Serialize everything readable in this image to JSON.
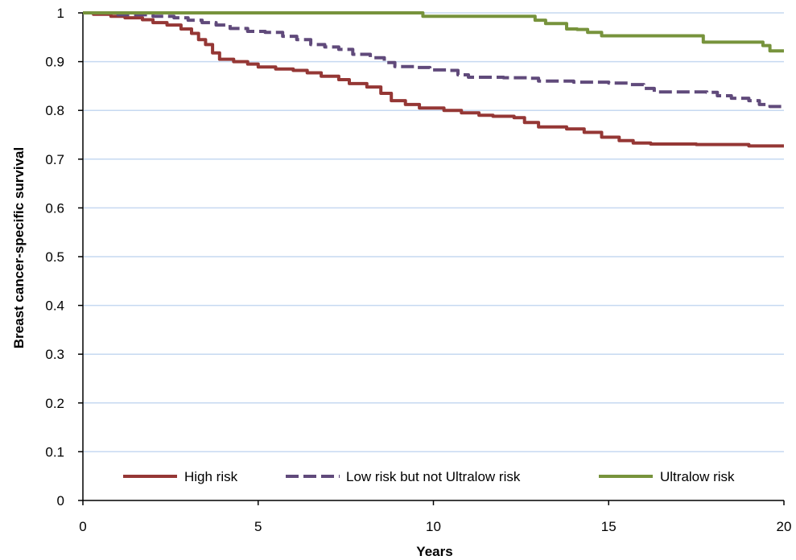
{
  "chart_data": {
    "type": "line",
    "title": "",
    "xlabel": "Years",
    "ylabel": "Breast cancer-specific survival",
    "xlim": [
      0,
      20
    ],
    "ylim": [
      0,
      1
    ],
    "x_ticks": [
      "0",
      "5",
      "10",
      "15",
      "20"
    ],
    "y_ticks": [
      "0",
      "0.1",
      "0.2",
      "0.3",
      "0.4",
      "0.5",
      "0.6",
      "0.7",
      "0.8",
      "0.9",
      "1"
    ],
    "grid": "horizontal",
    "legend_position": "bottom",
    "series": [
      {
        "name": "High risk",
        "color": "#953735",
        "dash": "solid",
        "points": [
          [
            0,
            1.0
          ],
          [
            0.3,
            0.997
          ],
          [
            0.8,
            0.993
          ],
          [
            1.2,
            0.99
          ],
          [
            1.7,
            0.986
          ],
          [
            2.0,
            0.98
          ],
          [
            2.4,
            0.975
          ],
          [
            2.8,
            0.967
          ],
          [
            3.1,
            0.958
          ],
          [
            3.3,
            0.945
          ],
          [
            3.5,
            0.935
          ],
          [
            3.7,
            0.918
          ],
          [
            3.9,
            0.905
          ],
          [
            4.3,
            0.9
          ],
          [
            4.7,
            0.895
          ],
          [
            5.0,
            0.889
          ],
          [
            5.5,
            0.885
          ],
          [
            6.0,
            0.882
          ],
          [
            6.4,
            0.877
          ],
          [
            6.8,
            0.87
          ],
          [
            7.3,
            0.863
          ],
          [
            7.6,
            0.855
          ],
          [
            8.1,
            0.848
          ],
          [
            8.5,
            0.835
          ],
          [
            8.8,
            0.82
          ],
          [
            9.2,
            0.812
          ],
          [
            9.6,
            0.805
          ],
          [
            10.3,
            0.8
          ],
          [
            10.8,
            0.795
          ],
          [
            11.3,
            0.79
          ],
          [
            11.7,
            0.788
          ],
          [
            12.3,
            0.785
          ],
          [
            12.6,
            0.775
          ],
          [
            13.0,
            0.766
          ],
          [
            13.8,
            0.762
          ],
          [
            14.3,
            0.755
          ],
          [
            14.8,
            0.745
          ],
          [
            15.3,
            0.738
          ],
          [
            15.7,
            0.733
          ],
          [
            16.2,
            0.731
          ],
          [
            17.5,
            0.73
          ],
          [
            18.5,
            0.73
          ],
          [
            19.0,
            0.727
          ],
          [
            20.0,
            0.727
          ]
        ]
      },
      {
        "name": "Low risk but not Ultralow risk",
        "color": "#604A7B",
        "dash": "dashed",
        "points": [
          [
            0,
            1.0
          ],
          [
            1.0,
            0.996
          ],
          [
            2.0,
            0.993
          ],
          [
            2.6,
            0.99
          ],
          [
            3.0,
            0.985
          ],
          [
            3.4,
            0.98
          ],
          [
            3.8,
            0.975
          ],
          [
            4.2,
            0.968
          ],
          [
            4.7,
            0.962
          ],
          [
            5.2,
            0.96
          ],
          [
            5.7,
            0.952
          ],
          [
            6.1,
            0.945
          ],
          [
            6.5,
            0.935
          ],
          [
            6.9,
            0.93
          ],
          [
            7.3,
            0.925
          ],
          [
            7.7,
            0.915
          ],
          [
            8.2,
            0.908
          ],
          [
            8.6,
            0.898
          ],
          [
            8.9,
            0.89
          ],
          [
            9.5,
            0.888
          ],
          [
            9.9,
            0.883
          ],
          [
            10.4,
            0.882
          ],
          [
            10.7,
            0.873
          ],
          [
            11.0,
            0.868
          ],
          [
            12.0,
            0.867
          ],
          [
            12.7,
            0.866
          ],
          [
            13.0,
            0.86
          ],
          [
            14.0,
            0.858
          ],
          [
            15.0,
            0.856
          ],
          [
            15.6,
            0.853
          ],
          [
            16.0,
            0.845
          ],
          [
            16.3,
            0.838
          ],
          [
            17.8,
            0.837
          ],
          [
            18.1,
            0.83
          ],
          [
            18.5,
            0.825
          ],
          [
            19.0,
            0.82
          ],
          [
            19.3,
            0.812
          ],
          [
            19.6,
            0.808
          ],
          [
            20.0,
            0.808
          ]
        ]
      },
      {
        "name": "Ultralow risk",
        "color": "#77933C",
        "dash": "solid",
        "points": [
          [
            0,
            1.0
          ],
          [
            9.6,
            1.0
          ],
          [
            9.7,
            0.993
          ],
          [
            12.7,
            0.993
          ],
          [
            12.9,
            0.985
          ],
          [
            13.2,
            0.978
          ],
          [
            13.6,
            0.978
          ],
          [
            13.8,
            0.967
          ],
          [
            14.1,
            0.966
          ],
          [
            14.4,
            0.96
          ],
          [
            14.8,
            0.953
          ],
          [
            17.6,
            0.953
          ],
          [
            17.7,
            0.94
          ],
          [
            19.2,
            0.94
          ],
          [
            19.4,
            0.933
          ],
          [
            19.6,
            0.922
          ],
          [
            20.0,
            0.922
          ]
        ]
      }
    ]
  }
}
